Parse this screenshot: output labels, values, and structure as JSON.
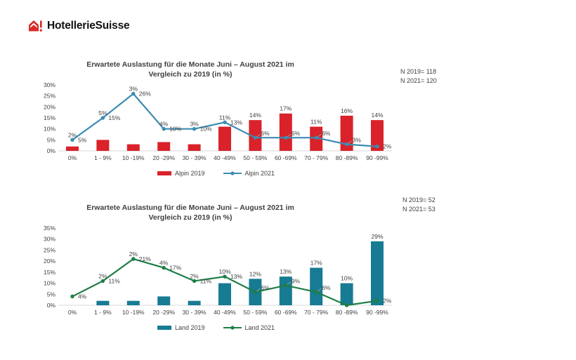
{
  "logo": {
    "text": "HotellerieSuisse",
    "icon_color": "#d92b26"
  },
  "colors": {
    "alpin_2019_red": "#d9222a",
    "alpin_2021_blue": "#3b8bb2",
    "land_2019_teal": "#177b93",
    "land_2021_green": "#1e7e46",
    "label_gray": "#404040",
    "axis_line_gray": "#d9d9d9"
  },
  "chart_data": [
    {
      "type": "bar+line",
      "title": "Erwartete Auslastung für die Monate Juni – August 2021 im Vergleich zu 2019 (in %)",
      "title_lines": [
        "Erwartete Auslastung für die Monate Juni – August 2021 im",
        "Vergleich zu 2019 (in %)"
      ],
      "annotation": [
        "N 2019= 118",
        "N 2021= 120"
      ],
      "categories": [
        "0%",
        "1 - 9%",
        "10 -19%",
        "20 -29%",
        "30 - 39%",
        "40 -49%",
        "50 - 59%",
        "60 -69%",
        "70 - 79%",
        "80 -89%",
        "90 -99%"
      ],
      "series": [
        {
          "name": "Alpin 2019",
          "type": "bar",
          "color": "#d9222a",
          "values": [
            2,
            5,
            3,
            4,
            3,
            11,
            14,
            17,
            11,
            16,
            14
          ],
          "labels": [
            "2%",
            "5%",
            "3%",
            "4%",
            "3%",
            "11%",
            "14%",
            "17%",
            "11%",
            "16%",
            "14%"
          ]
        },
        {
          "name": "Alpin 2021",
          "type": "line",
          "color": "#3b8bb2",
          "values": [
            5,
            15,
            26,
            10,
            10,
            13,
            6,
            6,
            6,
            3,
            2
          ],
          "labels": [
            "5%",
            "15%",
            "26%",
            "10%",
            "10%",
            "13%",
            "6%",
            "6%",
            "6%",
            "3%",
            "2%"
          ]
        }
      ],
      "xlabel": "",
      "ylabel": "",
      "ylim": [
        0,
        30
      ],
      "ytick_step": 5,
      "grid": false,
      "legend_position": "bottom"
    },
    {
      "type": "bar+line",
      "title": "Erwartete Auslastung für die Monate Juni – August 2021 im Vergleich zu 2019 (in %)",
      "title_lines": [
        "Erwartete Auslastung für die Monate Juni – August 2021 im",
        "Vergleich zu 2019 (in %)"
      ],
      "annotation": [
        "N 2019= 52",
        "N 2021= 53"
      ],
      "categories": [
        "0%",
        "1 - 9%",
        "10 -19%",
        "20 -29%",
        "30 - 39%",
        "40 -49%",
        "50 - 59%",
        "60 -69%",
        "70 - 79%",
        "80 -89%",
        "90 -99%"
      ],
      "series": [
        {
          "name": "Land 2019",
          "type": "bar",
          "color": "#177b93",
          "values": [
            0,
            2,
            2,
            4,
            2,
            10,
            12,
            13,
            17,
            10,
            29
          ],
          "labels": [
            null,
            "2%",
            "2%",
            "4%",
            "2%",
            "10%",
            "12%",
            "13%",
            "17%",
            "10%",
            "29%"
          ]
        },
        {
          "name": "Land 2021",
          "type": "line",
          "color": "#1e7e46",
          "values": [
            4,
            11,
            21,
            17,
            11,
            13,
            6,
            9,
            6,
            0,
            2
          ],
          "labels": [
            "4%",
            "11%",
            "21%",
            "17%",
            "11%",
            "13%",
            "6%",
            "9%",
            "6%",
            null,
            "2%"
          ]
        }
      ],
      "xlabel": "",
      "ylabel": "",
      "ylim": [
        0,
        35
      ],
      "ytick_step": 5,
      "grid": false,
      "legend_position": "bottom"
    }
  ]
}
